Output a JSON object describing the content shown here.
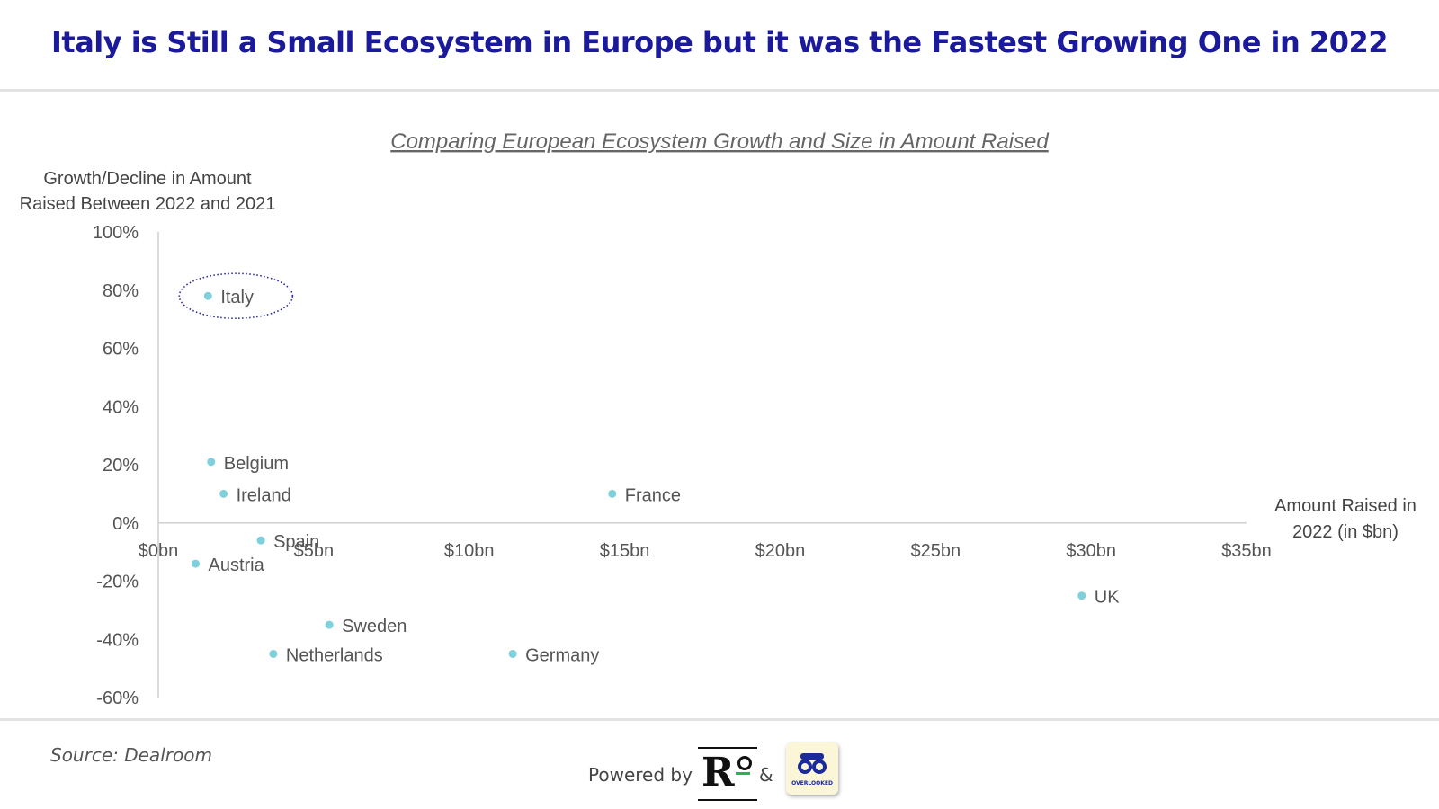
{
  "header": {
    "title": "Italy is Still a Small Ecosystem in Europe but it was the Fastest Growing One in 2022"
  },
  "footer": {
    "source": "Source: Dealroom",
    "powered_by": "Powered by",
    "ampersand": "&",
    "partner_logo_text": "OVERLOOKED"
  },
  "colors": {
    "title": "#1a1a9a",
    "marker": "#7fd0dd",
    "highlight_ring": "#2a2a9a",
    "axis": "#cfcfcf"
  },
  "chart_data": {
    "type": "scatter",
    "title": "Comparing European Ecosystem Growth and Size in Amount Raised",
    "ylabel": [
      "Growth/Decline in Amount",
      "Raised Between 2022 and 2021"
    ],
    "xlabel": [
      "Amount Raised in",
      "2022 (in $bn)"
    ],
    "xlim": [
      0,
      35
    ],
    "ylim": [
      -60,
      100
    ],
    "x_ticks": [
      {
        "value": 0,
        "label": "$0bn"
      },
      {
        "value": 5,
        "label": "$5bn"
      },
      {
        "value": 10,
        "label": "$10bn"
      },
      {
        "value": 15,
        "label": "$15bn"
      },
      {
        "value": 20,
        "label": "$20bn"
      },
      {
        "value": 25,
        "label": "$25bn"
      },
      {
        "value": 30,
        "label": "$30bn"
      },
      {
        "value": 35,
        "label": "$35bn"
      }
    ],
    "y_ticks": [
      {
        "value": 100,
        "label": "100%"
      },
      {
        "value": 80,
        "label": "80%"
      },
      {
        "value": 60,
        "label": "60%"
      },
      {
        "value": 40,
        "label": "40%"
      },
      {
        "value": 20,
        "label": "20%"
      },
      {
        "value": 0,
        "label": "0%"
      },
      {
        "value": -20,
        "label": "-20%"
      },
      {
        "value": -40,
        "label": "-40%"
      },
      {
        "value": -60,
        "label": "-60%"
      }
    ],
    "points": [
      {
        "label": "Italy",
        "x": 1.6,
        "y": 78,
        "highlight": true
      },
      {
        "label": "Belgium",
        "x": 1.7,
        "y": 21
      },
      {
        "label": "Ireland",
        "x": 2.1,
        "y": 10
      },
      {
        "label": "France",
        "x": 14.6,
        "y": 10
      },
      {
        "label": "Spain",
        "x": 3.3,
        "y": -6
      },
      {
        "label": "Austria",
        "x": 1.2,
        "y": -14
      },
      {
        "label": "UK",
        "x": 29.7,
        "y": -25
      },
      {
        "label": "Sweden",
        "x": 5.5,
        "y": -35
      },
      {
        "label": "Netherlands",
        "x": 3.7,
        "y": -45
      },
      {
        "label": "Germany",
        "x": 11.4,
        "y": -45
      }
    ]
  }
}
